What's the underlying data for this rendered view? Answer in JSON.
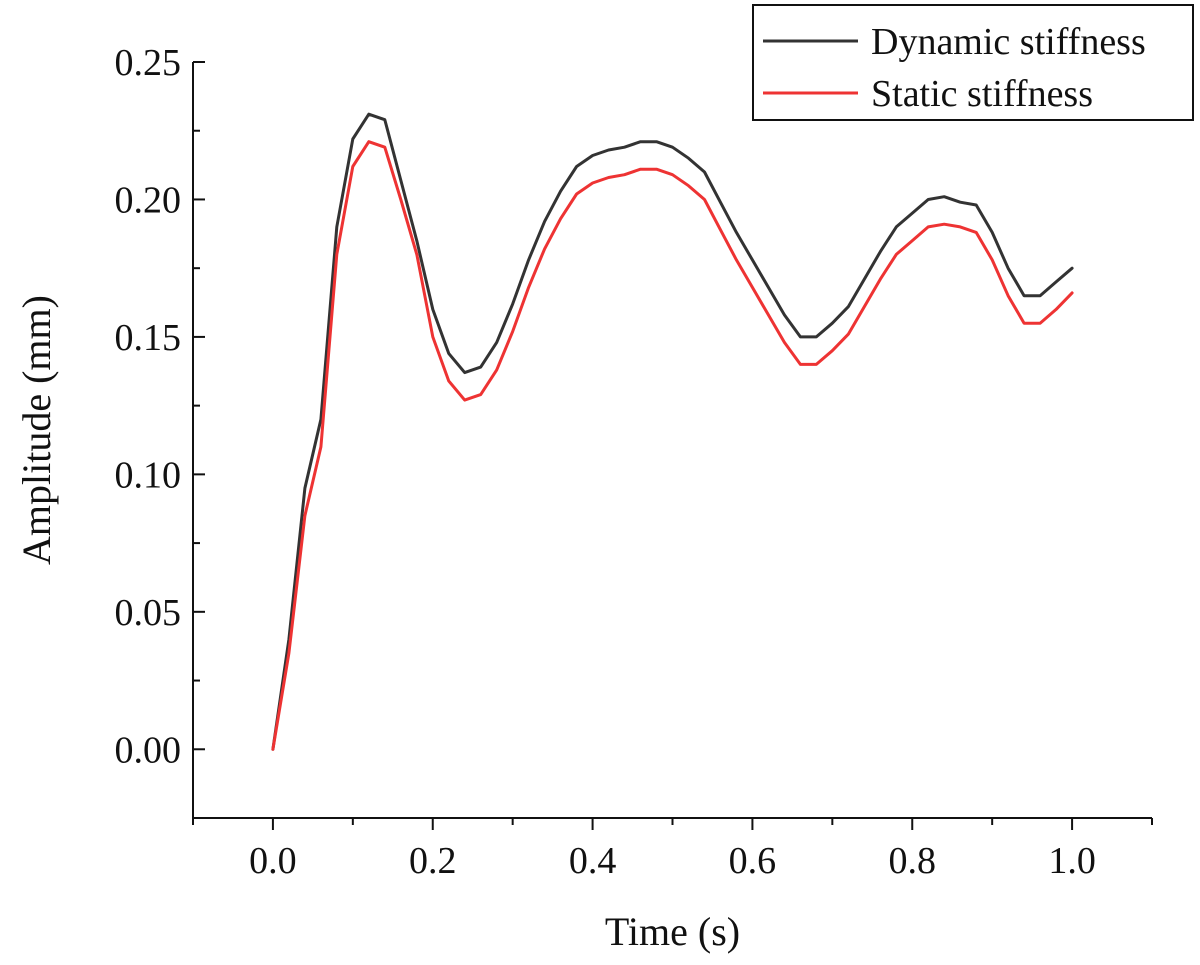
{
  "chart_data": {
    "type": "line",
    "title": "",
    "xlabel": "Time (s)",
    "ylabel": "Amplitude (mm)",
    "xlim": [
      -0.1,
      1.1
    ],
    "ylim": [
      -0.025,
      0.25
    ],
    "xticks": [
      "0.0",
      "0.2",
      "0.4",
      "0.6",
      "0.8",
      "1.0"
    ],
    "xtick_values": [
      0.0,
      0.2,
      0.4,
      0.6,
      0.8,
      1.0
    ],
    "yticks": [
      "0.00",
      "0.05",
      "0.10",
      "0.15",
      "0.20",
      "0.25"
    ],
    "ytick_values": [
      0.0,
      0.05,
      0.1,
      0.15,
      0.2,
      0.25
    ],
    "grid": false,
    "legend_position": "top-right",
    "series": [
      {
        "name": "Dynamic stiffness",
        "color": "#333333",
        "x": [
          0.0,
          0.02,
          0.04,
          0.06,
          0.08,
          0.1,
          0.12,
          0.14,
          0.16,
          0.18,
          0.2,
          0.22,
          0.24,
          0.26,
          0.28,
          0.3,
          0.32,
          0.34,
          0.36,
          0.38,
          0.4,
          0.42,
          0.44,
          0.46,
          0.48,
          0.5,
          0.52,
          0.54,
          0.56,
          0.58,
          0.6,
          0.62,
          0.64,
          0.66,
          0.68,
          0.7,
          0.72,
          0.74,
          0.76,
          0.78,
          0.8,
          0.82,
          0.84,
          0.86,
          0.88,
          0.9,
          0.92,
          0.94,
          0.96,
          0.98,
          1.0
        ],
        "y": [
          0.0,
          0.04,
          0.095,
          0.12,
          0.19,
          0.222,
          0.231,
          0.229,
          0.207,
          0.185,
          0.16,
          0.144,
          0.137,
          0.139,
          0.148,
          0.162,
          0.178,
          0.192,
          0.203,
          0.212,
          0.216,
          0.218,
          0.219,
          0.221,
          0.221,
          0.219,
          0.215,
          0.21,
          0.199,
          0.188,
          0.178,
          0.168,
          0.158,
          0.15,
          0.15,
          0.155,
          0.161,
          0.171,
          0.181,
          0.19,
          0.195,
          0.2,
          0.201,
          0.199,
          0.198,
          0.188,
          0.175,
          0.165,
          0.165,
          0.17,
          0.175
        ]
      },
      {
        "name": "Static stiffness",
        "color": "#ee3333",
        "x": [
          0.0,
          0.02,
          0.04,
          0.06,
          0.08,
          0.1,
          0.12,
          0.14,
          0.16,
          0.18,
          0.2,
          0.22,
          0.24,
          0.26,
          0.28,
          0.3,
          0.32,
          0.34,
          0.36,
          0.38,
          0.4,
          0.42,
          0.44,
          0.46,
          0.48,
          0.5,
          0.52,
          0.54,
          0.56,
          0.58,
          0.6,
          0.62,
          0.64,
          0.66,
          0.68,
          0.7,
          0.72,
          0.74,
          0.76,
          0.78,
          0.8,
          0.82,
          0.84,
          0.86,
          0.88,
          0.9,
          0.92,
          0.94,
          0.96,
          0.98,
          1.0
        ],
        "y": [
          0.0,
          0.035,
          0.085,
          0.11,
          0.18,
          0.212,
          0.221,
          0.219,
          0.2,
          0.18,
          0.15,
          0.134,
          0.127,
          0.129,
          0.138,
          0.152,
          0.168,
          0.182,
          0.193,
          0.202,
          0.206,
          0.208,
          0.209,
          0.211,
          0.211,
          0.209,
          0.205,
          0.2,
          0.189,
          0.178,
          0.168,
          0.158,
          0.148,
          0.14,
          0.14,
          0.145,
          0.151,
          0.161,
          0.171,
          0.18,
          0.185,
          0.19,
          0.191,
          0.19,
          0.188,
          0.178,
          0.165,
          0.155,
          0.155,
          0.16,
          0.166
        ]
      }
    ]
  }
}
